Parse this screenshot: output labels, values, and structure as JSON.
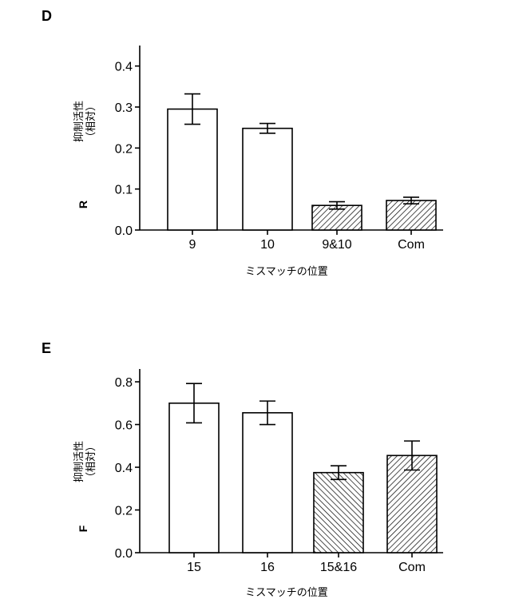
{
  "chart_data": [
    {
      "panel": "D",
      "type": "bar",
      "categories": [
        "9",
        "10",
        "9&10",
        "Com"
      ],
      "values": [
        0.295,
        0.248,
        0.06,
        0.072
      ],
      "errors": [
        0.037,
        0.012,
        0.009,
        0.008
      ],
      "patterns": [
        "none",
        "none",
        "hatch",
        "hatch"
      ],
      "ylabel_lines": [
        "抑制活性",
        "（相対）"
      ],
      "ylabel_extra": "R",
      "xlabel": "ミスマッチの位置",
      "ylim": [
        0,
        0.45
      ],
      "yticks": [
        0.0,
        0.1,
        0.2,
        0.3,
        0.4
      ],
      "ytick_labels": [
        "0.0",
        "0.1",
        "0.2",
        "0.3",
        "0.4"
      ]
    },
    {
      "panel": "E",
      "type": "bar",
      "categories": [
        "15",
        "16",
        "15&16",
        "Com"
      ],
      "values": [
        0.7,
        0.655,
        0.375,
        0.455
      ],
      "errors": [
        0.092,
        0.055,
        0.032,
        0.068
      ],
      "patterns": [
        "none",
        "none",
        "hatch-back",
        "hatch"
      ],
      "ylabel_lines": [
        "抑制活性",
        "（相対）"
      ],
      "ylabel_extra": "F",
      "xlabel": "ミスマッチの位置",
      "ylim": [
        0,
        0.86
      ],
      "yticks": [
        0.0,
        0.2,
        0.4,
        0.6,
        0.8
      ],
      "ytick_labels": [
        "0.0",
        "0.2",
        "0.4",
        "0.6",
        "0.8"
      ]
    }
  ]
}
